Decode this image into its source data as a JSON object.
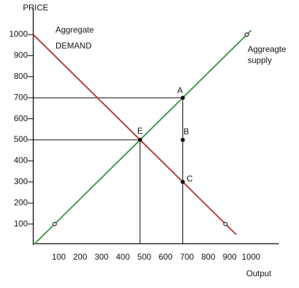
{
  "chart_data": {
    "type": "line",
    "y_label": "PRICE",
    "x_label": "Output",
    "xlim": [
      0,
      1150
    ],
    "ylim": [
      0,
      1125
    ],
    "xticks": [
      100,
      200,
      300,
      400,
      500,
      600,
      700,
      800,
      900,
      1000
    ],
    "yticks": [
      100,
      200,
      300,
      400,
      500,
      600,
      700,
      800,
      900,
      1000
    ],
    "grid": false,
    "series": [
      {
        "name": "Aggregate DEMAND",
        "color": "#b23a3a",
        "x": [
          0,
          500,
          700,
          900,
          950
        ],
        "values": [
          1000,
          500,
          300,
          100,
          50
        ]
      },
      {
        "name": "Aggreagte supply",
        "color": "#3f9a48",
        "x": [
          0,
          100,
          500,
          700,
          1000,
          1020
        ],
        "values": [
          0,
          100,
          500,
          700,
          1000,
          1020
        ]
      }
    ],
    "annotations": [
      "Aggregate",
      "DEMAND",
      "Aggreagte",
      "supply"
    ],
    "labeled_points": [
      {
        "label": "A",
        "x": 700,
        "y": 700
      },
      {
        "label": "B",
        "x": 700,
        "y": 500
      },
      {
        "label": "C",
        "x": 700,
        "y": 300
      },
      {
        "label": "E",
        "x": 500,
        "y": 500
      }
    ],
    "markers": [
      {
        "x": 100,
        "y": 100
      },
      {
        "x": 1000,
        "y": 1000
      },
      {
        "x": 900,
        "y": 100
      }
    ],
    "guides": [
      {
        "x": 700,
        "y": 700
      },
      {
        "x": 500,
        "y": 500
      }
    ]
  }
}
